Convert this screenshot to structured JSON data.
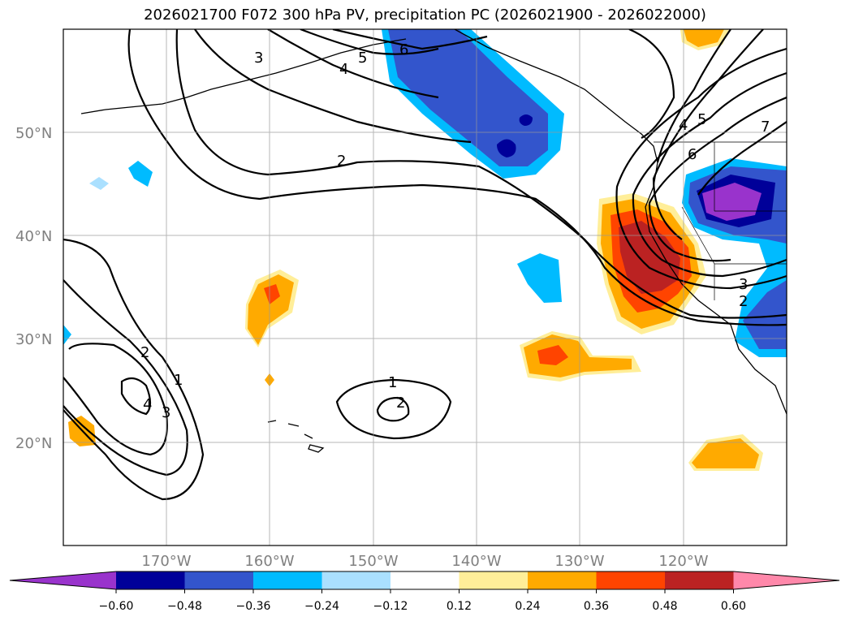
{
  "title": "2026021700 F072 300 hPa PV, precipitation PC (2026021900 - 2026022000)",
  "map": {
    "lat_labels": [
      "50°N",
      "40°N",
      "30°N",
      "20°N"
    ],
    "lon_labels": [
      "170°W",
      "160°W",
      "150°W",
      "140°W",
      "130°W",
      "120°W"
    ],
    "contour_labels": [
      "3",
      "5",
      "4",
      "6",
      "2",
      "7",
      "5",
      "4",
      "6",
      "3",
      "2",
      "2",
      "1",
      "4",
      "3",
      "1",
      "2"
    ]
  },
  "colorbar": {
    "ticks": [
      "−0.60",
      "−0.48",
      "−0.36",
      "−0.24",
      "−0.12",
      "0.12",
      "0.24",
      "0.36",
      "0.48",
      "0.60"
    ],
    "colors": [
      "#9933cc",
      "#000099",
      "#3355cc",
      "#00bbff",
      "#aae0ff",
      "#ffffff",
      "#ffee99",
      "#ffaa00",
      "#ff4400",
      "#bb2222",
      "#ff88aa"
    ]
  },
  "colors": {
    "neg_strong": "#000099",
    "neg_mid": "#3355cc",
    "neg_light": "#00bbff",
    "neg_pale": "#aae0ff",
    "pos_pale": "#ffee99",
    "pos_light": "#ffaa00",
    "pos_mid": "#ff4400",
    "pos_strong": "#bb2222",
    "purple": "#9933cc"
  }
}
